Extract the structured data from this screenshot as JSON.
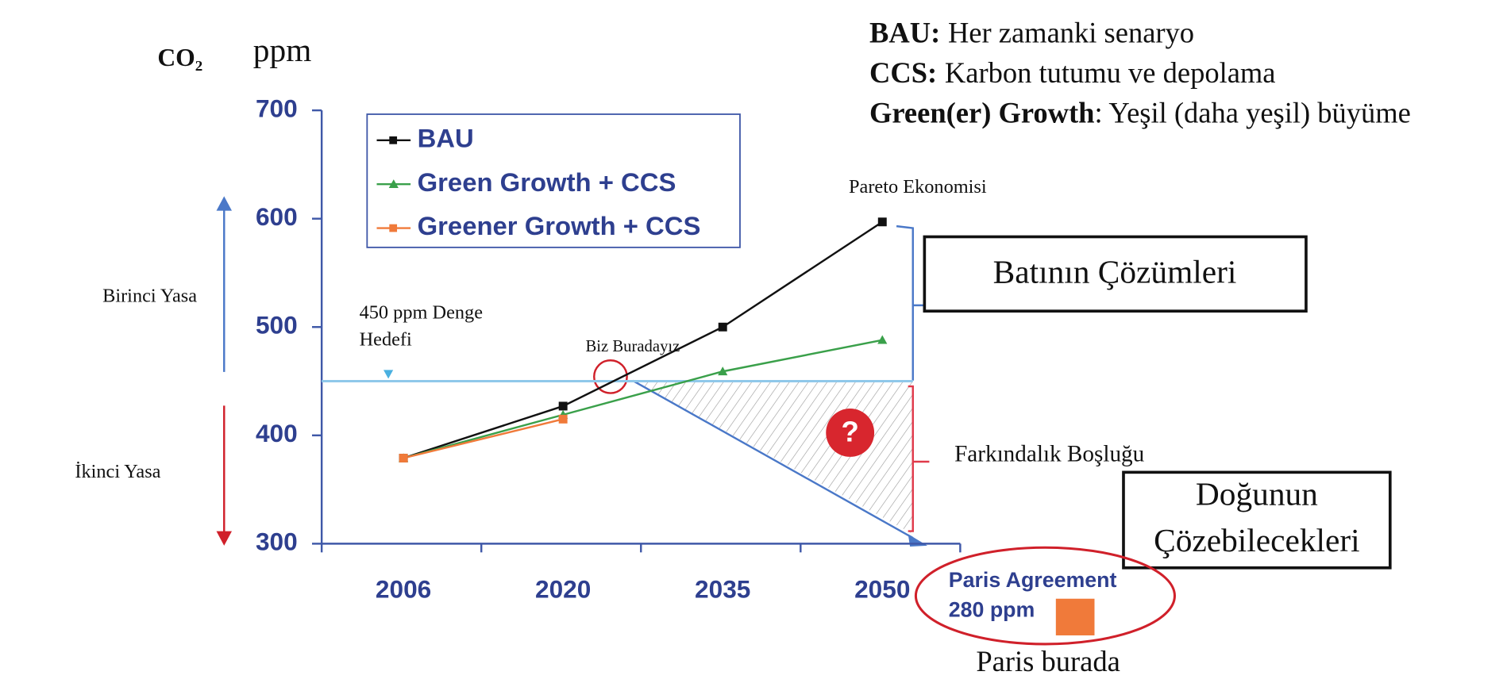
{
  "chart_data": {
    "type": "line",
    "y_label": "CO₂",
    "y_unit": "ppm",
    "categories": [
      "2006",
      "2020",
      "2035",
      "2050"
    ],
    "series": [
      {
        "name": "BAU",
        "color": "#111111",
        "marker": "square",
        "values": [
          379,
          427,
          500,
          597
        ]
      },
      {
        "name": "Green Growth + CCS",
        "color": "#3aa04a",
        "marker": "triangle",
        "values": [
          379,
          419,
          459,
          488
        ]
      },
      {
        "name": "Greener Growth + CCS",
        "color": "#f07a3a",
        "marker": "square",
        "values": [
          379,
          415,
          null,
          null
        ]
      }
    ],
    "ylim": [
      300,
      700
    ],
    "yticks": [
      300,
      400,
      500,
      600,
      700
    ],
    "legend": "upper left",
    "reference_line": {
      "value": 450,
      "label_lines": [
        "450 ppm Denge",
        "Hedefi"
      ]
    },
    "annotations": {
      "upper_arrow": "Birinci Yasa",
      "lower_arrow": "İkinci Yasa",
      "current_point": "Biz Buradayız",
      "peak": "Pareto Ekonomisi",
      "gap_mark": "?",
      "gap": "Farkındalık Boşluğu",
      "west_box": "Batının Çözümleri",
      "east_box": [
        "Doğunun",
        "Çözebilecekleri"
      ],
      "paris": [
        "Paris Agreement",
        "280 ppm"
      ],
      "paris_note": "Paris burada"
    }
  },
  "definitions": [
    {
      "term": "BAU:",
      "text": "Her zamanki senaryo"
    },
    {
      "term": "CCS:",
      "text": "Karbon tutumu ve depolama"
    },
    {
      "term": "Green(er) Growth",
      "text": ": Yeşil (daha yeşil) büyüme"
    }
  ]
}
